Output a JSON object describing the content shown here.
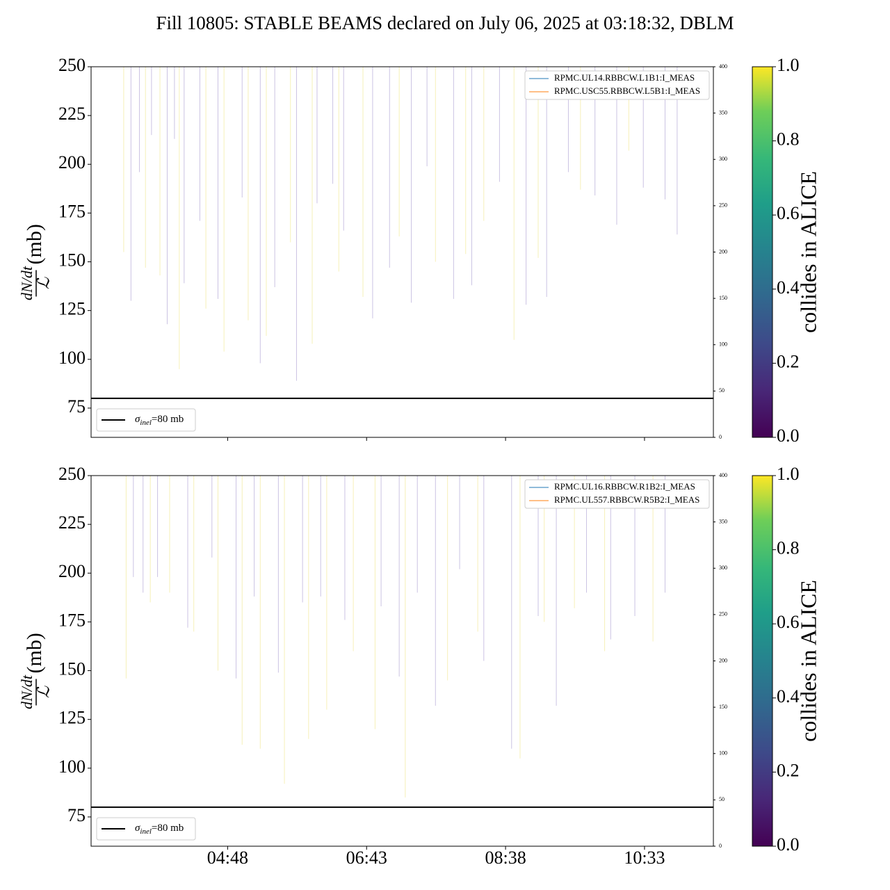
{
  "title": "Fill 10805: STABLE BEAMS declared on July 06, 2025 at 03:18:32, DBLM",
  "chart_data": [
    {
      "type": "spike",
      "ylabel": {
        "numerator": "dN/dt",
        "denominator": "ℒ",
        "unit": "(mb)"
      },
      "xlim": [
        "02:55",
        "11:30"
      ],
      "ylim": [
        60,
        250
      ],
      "yticks": [
        75,
        100,
        125,
        150,
        175,
        200,
        225,
        250
      ],
      "y2lim": [
        0,
        400
      ],
      "y2ticks": [
        0,
        50,
        100,
        150,
        200,
        250,
        300,
        350,
        400
      ],
      "hline": {
        "value": 80,
        "color": "#000000",
        "label": [
          "σ",
          "inel",
          "=80 mb"
        ]
      },
      "legend": "upper right",
      "series": [
        {
          "name": "RPMC.UL14.RBBCW.L1B1:I_MEAS",
          "color": "#1f77b4",
          "axis": "y2",
          "x": [
            "03:18",
            "11:15"
          ],
          "values": [
            0,
            0
          ]
        },
        {
          "name": "RPMC.USC55.RBBCW.L5B1:I_MEAS",
          "color": "#ff7f0e",
          "axis": "y2",
          "x": [
            "03:18",
            "11:15"
          ],
          "values": [
            0,
            0
          ]
        }
      ],
      "spikes": [
        {
          "color": "#cbc3e3",
          "x": [
            "03:28",
            "03:35",
            "03:45",
            "03:58",
            "04:04",
            "04:12",
            "04:25",
            "04:40",
            "05:00",
            "05:15",
            "05:27",
            "05:45",
            "06:02",
            "06:15",
            "06:24",
            "06:48",
            "07:02",
            "07:20",
            "07:33",
            "07:55",
            "08:10",
            "08:33",
            "08:55",
            "09:12",
            "09:30",
            "09:52",
            "10:10",
            "10:32",
            "10:50",
            "11:00"
          ],
          "values": [
            130,
            196,
            215,
            118,
            213,
            139,
            171,
            131,
            183,
            98,
            137,
            89,
            180,
            190,
            166,
            121,
            147,
            129,
            199,
            131,
            138,
            191,
            128,
            132,
            196,
            184,
            169,
            188,
            182,
            164
          ]
        },
        {
          "color": "#f6f0b8",
          "x": [
            "03:22",
            "03:40",
            "03:52",
            "04:08",
            "04:30",
            "04:45",
            "05:05",
            "05:20",
            "05:40",
            "05:58",
            "06:20",
            "06:40",
            "07:10",
            "07:40",
            "08:05",
            "08:20",
            "08:45",
            "09:05",
            "09:40",
            "10:20"
          ],
          "values": [
            155,
            147,
            143,
            95,
            126,
            104,
            120,
            112,
            160,
            108,
            145,
            132,
            163,
            150,
            154,
            171,
            110,
            152,
            187,
            207
          ]
        }
      ],
      "colorbar": {
        "label": "collides in ALICE",
        "lim": [
          0,
          1
        ],
        "ticks": [
          {
            "value": 0,
            "label": "0.0"
          },
          {
            "value": 0.2,
            "label": "0.2"
          },
          {
            "value": 0.4,
            "label": "0.4"
          },
          {
            "value": 0.6,
            "label": "0.6"
          },
          {
            "value": 0.8,
            "label": "0.8"
          },
          {
            "value": 1,
            "label": "1.0"
          }
        ]
      }
    },
    {
      "type": "spike",
      "ylabel": {
        "numerator": "dN/dt",
        "denominator": "ℒ",
        "unit": "(mb)"
      },
      "xlim": [
        "02:55",
        "11:30"
      ],
      "xticks": [
        "04:48",
        "06:43",
        "08:38",
        "10:33"
      ],
      "ylim": [
        60,
        250
      ],
      "yticks": [
        75,
        100,
        125,
        150,
        175,
        200,
        225,
        250
      ],
      "y2lim": [
        0,
        400
      ],
      "y2ticks": [
        0,
        50,
        100,
        150,
        200,
        250,
        300,
        350,
        400
      ],
      "hline": {
        "value": 80,
        "color": "#000000",
        "label": [
          "σ",
          "inel",
          "=80 mb"
        ]
      },
      "legend": "upper right",
      "series": [
        {
          "name": "RPMC.UL16.RBBCW.R1B2:I_MEAS",
          "color": "#1f77b4",
          "axis": "y2",
          "x": [
            "03:18",
            "11:15"
          ],
          "values": [
            0,
            0
          ]
        },
        {
          "name": "RPMC.UL557.RBBCW.R5B2:I_MEAS",
          "color": "#ff7f0e",
          "axis": "y2",
          "x": [
            "03:18",
            "11:15"
          ],
          "values": [
            0,
            0
          ]
        }
      ],
      "spikes": [
        {
          "color": "#cbc3e3",
          "x": [
            "03:30",
            "03:38",
            "03:50",
            "04:15",
            "04:35",
            "04:55",
            "05:10",
            "05:30",
            "05:50",
            "06:05",
            "06:25",
            "06:55",
            "07:10",
            "07:25",
            "07:40",
            "08:00",
            "08:20",
            "08:43",
            "09:05",
            "09:20",
            "09:45",
            "10:05",
            "10:25",
            "10:50"
          ],
          "values": [
            198,
            190,
            198,
            172,
            208,
            146,
            188,
            149,
            185,
            188,
            176,
            183,
            147,
            190,
            132,
            202,
            155,
            110,
            178,
            132,
            190,
            166,
            178,
            190
          ]
        },
        {
          "color": "#f6f0b8",
          "x": [
            "03:24",
            "03:44",
            "04:00",
            "04:20",
            "04:40",
            "05:00",
            "05:15",
            "05:35",
            "05:55",
            "06:10",
            "06:32",
            "06:50",
            "07:15",
            "07:50",
            "08:15",
            "08:50",
            "09:10",
            "09:35",
            "10:00",
            "10:40"
          ],
          "values": [
            146,
            185,
            190,
            170,
            150,
            112,
            110,
            92,
            115,
            130,
            160,
            120,
            85,
            145,
            170,
            105,
            175,
            182,
            160,
            165
          ]
        }
      ],
      "colorbar": {
        "label": "collides in ALICE",
        "lim": [
          0,
          1
        ],
        "ticks": [
          {
            "value": 0,
            "label": "0.0"
          },
          {
            "value": 0.2,
            "label": "0.2"
          },
          {
            "value": 0.4,
            "label": "0.4"
          },
          {
            "value": 0.6,
            "label": "0.6"
          },
          {
            "value": 0.8,
            "label": "0.8"
          },
          {
            "value": 1,
            "label": "1.0"
          }
        ]
      }
    }
  ]
}
